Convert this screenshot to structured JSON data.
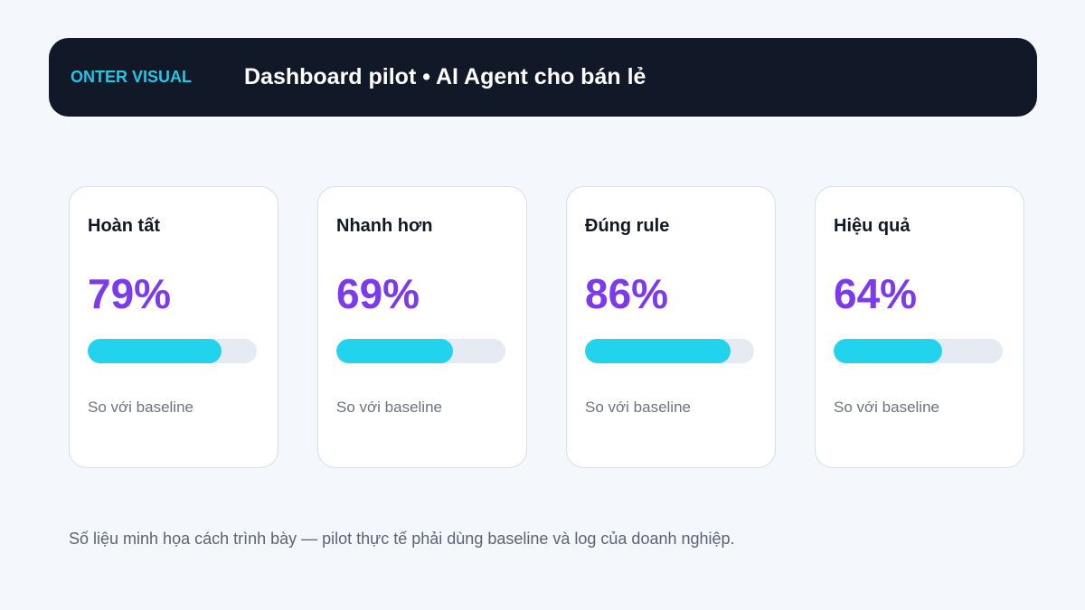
{
  "header": {
    "brand": "ONTER VISUAL",
    "title": "Dashboard pilot • AI Agent cho bán lẻ"
  },
  "cards": [
    {
      "title": "Hoàn tất",
      "value": "79%",
      "progress": 0.79,
      "note": "So với baseline"
    },
    {
      "title": "Nhanh hơn",
      "value": "69%",
      "progress": 0.69,
      "note": "So với baseline"
    },
    {
      "title": "Đúng rule",
      "value": "86%",
      "progress": 0.86,
      "note": "So với baseline"
    },
    {
      "title": "Hiệu quả",
      "value": "64%",
      "progress": 0.64,
      "note": "So với baseline"
    }
  ],
  "footnote": "Số liệu minh họa cách trình bày — pilot thực tế phải dùng baseline và log của doanh nghiệp.",
  "colors": {
    "header_bg": "#111827",
    "brand": "#22c7e6",
    "accent_value": "#7c3aed",
    "progress_fill": "#22d3ee",
    "progress_track": "#e6ebf3"
  }
}
